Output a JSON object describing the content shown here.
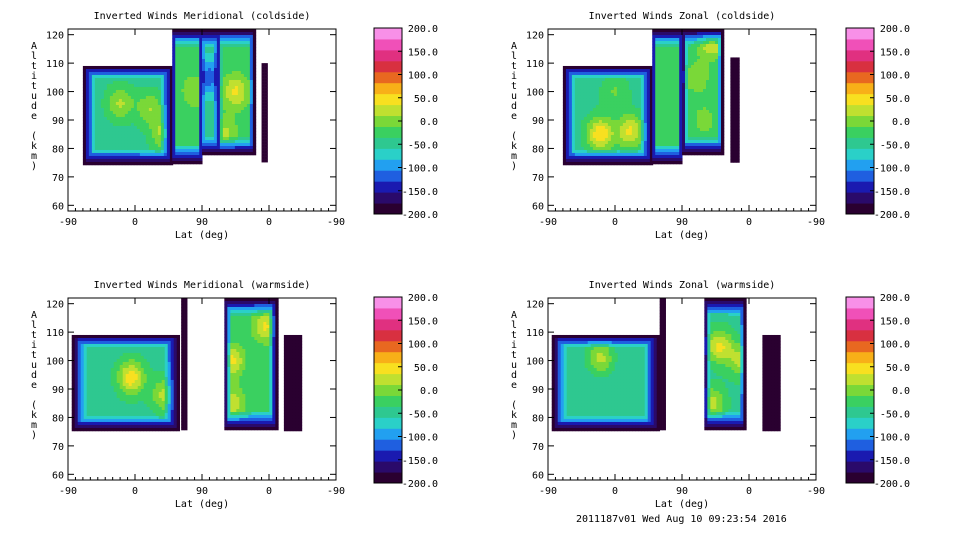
{
  "footer": "2011187v01 Wed Aug 10 09:23:54 2016",
  "colormap": [
    "#2a0030",
    "#2a0a6a",
    "#1a1ab0",
    "#1f5fe0",
    "#22a0f0",
    "#2ad0c8",
    "#2ec890",
    "#3ad060",
    "#7ad838",
    "#c0e030",
    "#f8e020",
    "#f8b018",
    "#e86820",
    "#d83040",
    "#e03080",
    "#f050b8",
    "#f890e8"
  ],
  "chart_data": [
    {
      "type": "heatmap",
      "title": "Inverted Winds Meridional (coldside)",
      "xlabel": "Lat (deg)",
      "ylabel": "Altitude (km)",
      "xticks": [
        "-90",
        "0",
        "90",
        "0",
        "-90"
      ],
      "yticks": [
        "60",
        "70",
        "80",
        "90",
        "100",
        "110",
        "120"
      ],
      "ylim": [
        58,
        122
      ],
      "colorbar_ticks": [
        "200.0",
        "150.0",
        "100.0",
        "50.0",
        "0.0",
        "-50.0",
        "-100.0",
        "-150.0",
        "-200.0"
      ],
      "clim": [
        -200,
        200
      ],
      "regions": [
        {
          "lat": [
            -70,
            50
          ],
          "alt": [
            75,
            109
          ],
          "base": -45,
          "blobs": [
            [
              -20,
              96,
              15
            ],
            [
              20,
              94,
              10
            ],
            [
              40,
              85,
              20
            ]
          ]
        },
        {
          "lat": [
            50,
            90
          ],
          "alt": [
            75,
            122
          ],
          "base": -30,
          "blobs": [
            [
              80,
              100,
              10
            ]
          ]
        },
        {
          "lat": [
            90,
            110
          ],
          "alt": [
            78,
            122
          ],
          "base": -50,
          "blobs": [
            [
              100,
              105,
              -120
            ]
          ]
        },
        {
          "lat": [
            110,
            160
          ],
          "alt": [
            78,
            122
          ],
          "base": -30,
          "blobs": [
            [
              135,
              100,
              40
            ],
            [
              120,
              85,
              20
            ]
          ]
        },
        {
          "lat": [
            170,
            176
          ],
          "alt": [
            76,
            110
          ],
          "base": -200,
          "blobs": []
        }
      ]
    },
    {
      "type": "heatmap",
      "title": "Inverted Winds Zonal (coldside)",
      "xlabel": "Lat (deg)",
      "ylabel": "Altitude (km)",
      "xticks": [
        "-90",
        "0",
        "90",
        "0",
        "-90"
      ],
      "yticks": [
        "60",
        "70",
        "80",
        "90",
        "100",
        "110",
        "120"
      ],
      "ylim": [
        58,
        122
      ],
      "colorbar_ticks": [
        "200.0",
        "150.0",
        "100.0",
        "50.0",
        "0.0",
        "-50.0",
        "-100.0",
        "-150.0",
        "-200.0"
      ],
      "clim": [
        -200,
        200
      ],
      "regions": [
        {
          "lat": [
            -70,
            50
          ],
          "alt": [
            75,
            109
          ],
          "base": -45,
          "blobs": [
            [
              -20,
              85,
              55
            ],
            [
              20,
              86,
              40
            ],
            [
              0,
              100,
              -10
            ]
          ]
        },
        {
          "lat": [
            50,
            90
          ],
          "alt": [
            75,
            122
          ],
          "base": -30,
          "blobs": []
        },
        {
          "lat": [
            90,
            145
          ],
          "alt": [
            78,
            122
          ],
          "base": -35,
          "blobs": [
            [
              110,
              105,
              10
            ],
            [
              130,
              118,
              50
            ],
            [
              120,
              90,
              0
            ]
          ]
        },
        {
          "lat": [
            155,
            165
          ],
          "alt": [
            76,
            112
          ],
          "base": -200,
          "blobs": []
        }
      ]
    },
    {
      "type": "heatmap",
      "title": "Inverted Winds Meridional (warmside)",
      "xlabel": "Lat (deg)",
      "ylabel": "Altitude (km)",
      "xticks": [
        "-90",
        "0",
        "90",
        "0",
        "-90"
      ],
      "yticks": [
        "60",
        "70",
        "80",
        "90",
        "100",
        "110",
        "120"
      ],
      "ylim": [
        58,
        122
      ],
      "colorbar_ticks": [
        "200.0",
        "150.0",
        "100.0",
        "50.0",
        "0.0",
        "-50.0",
        "-100.0",
        "-150.0",
        "-200.0"
      ],
      "clim": [
        -200,
        200
      ],
      "regions": [
        {
          "lat": [
            -85,
            58
          ],
          "alt": [
            76,
            109
          ],
          "base": -45,
          "blobs": [
            [
              -5,
              94,
              50
            ],
            [
              40,
              88,
              20
            ]
          ]
        },
        {
          "lat": [
            62,
            68
          ],
          "alt": [
            76,
            122
          ],
          "base": -200,
          "blobs": []
        },
        {
          "lat": [
            120,
            190
          ],
          "alt": [
            76,
            122
          ],
          "base": -35,
          "blobs": [
            [
              175,
              112,
              40
            ],
            [
              130,
              100,
              40
            ],
            [
              130,
              85,
              30
            ]
          ]
        },
        {
          "lat": [
            200,
            223
          ],
          "alt": [
            76,
            109
          ],
          "base": -200,
          "blobs": []
        }
      ]
    },
    {
      "type": "heatmap",
      "title": "Inverted Winds Zonal (warmside)",
      "xlabel": "Lat (deg)",
      "ylabel": "Altitude (km)",
      "xticks": [
        "-90",
        "0",
        "90",
        "0",
        "-90"
      ],
      "yticks": [
        "60",
        "70",
        "80",
        "90",
        "100",
        "110",
        "120"
      ],
      "ylim": [
        58,
        122
      ],
      "colorbar_ticks": [
        "200.0",
        "150.0",
        "100.0",
        "50.0",
        "0.0",
        "-50.0",
        "-100.0",
        "-150.0",
        "-200.0"
      ],
      "clim": [
        -200,
        200
      ],
      "regions": [
        {
          "lat": [
            -85,
            58
          ],
          "alt": [
            76,
            109
          ],
          "base": -50,
          "blobs": [
            [
              -20,
              101,
              20
            ],
            [
              -30,
              90,
              -60
            ]
          ]
        },
        {
          "lat": [
            60,
            66
          ],
          "alt": [
            76,
            122
          ],
          "base": -200,
          "blobs": []
        },
        {
          "lat": [
            120,
            175
          ],
          "alt": [
            76,
            122
          ],
          "base": -45,
          "blobs": [
            [
              140,
              105,
              40
            ],
            [
              170,
              100,
              20
            ],
            [
              130,
              85,
              20
            ]
          ]
        },
        {
          "lat": [
            198,
            220
          ],
          "alt": [
            76,
            109
          ],
          "base": -200,
          "blobs": []
        }
      ]
    }
  ]
}
